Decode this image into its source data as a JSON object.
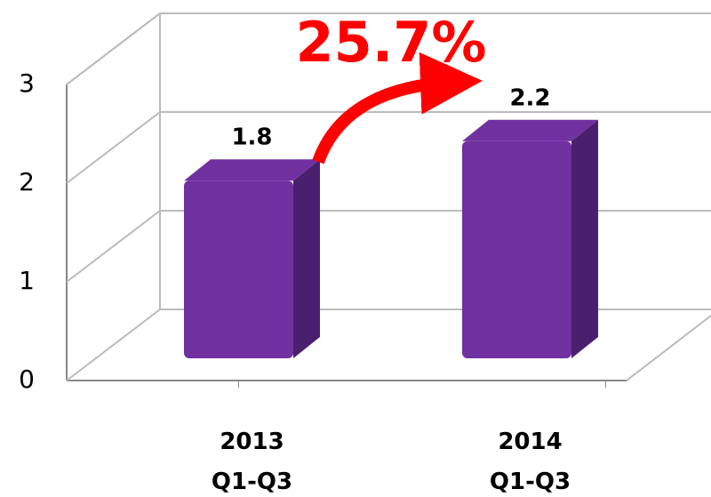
{
  "chart_data": {
    "type": "bar3d",
    "categories": [
      "2013 Q1-Q3",
      "2014 Q1-Q3"
    ],
    "values": [
      1.8,
      2.2
    ],
    "color": "#7030a0",
    "side_color": "#4a1f6e",
    "ylim": [
      0,
      3
    ],
    "yticks": [
      0,
      1,
      2,
      3
    ],
    "grid": true,
    "annotation": "25.7%"
  }
}
